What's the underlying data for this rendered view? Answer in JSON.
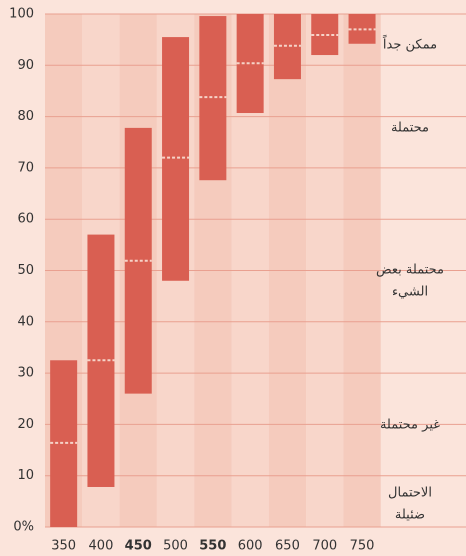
{
  "chart_data": {
    "type": "range_bar",
    "categories": [
      "350",
      "400",
      "450",
      "500",
      "550",
      "600",
      "650",
      "700",
      "750"
    ],
    "bold": [
      false,
      false,
      true,
      false,
      true,
      false,
      false,
      false,
      false
    ],
    "low": [
      0,
      7.8,
      26,
      48,
      67.6,
      80.7,
      87.3,
      92,
      94.2
    ],
    "high": [
      32.5,
      57,
      77.8,
      95.5,
      99.6,
      100,
      100,
      100,
      100
    ],
    "median": [
      16.4,
      32.5,
      51.9,
      72,
      83.8,
      90.4,
      93.8,
      95.9,
      97
    ],
    "color": "#d95f52",
    "median_color": "#f6d3c8",
    "ylim": [
      0,
      100
    ],
    "yticks": [
      {
        "value": 0,
        "label": "0%"
      },
      10,
      20,
      30,
      40,
      50,
      60,
      70,
      80,
      90,
      100
    ],
    "grid": true,
    "annotations": [
      {
        "lines": [
          "ممكن جداً"
        ]
      },
      {
        "lines": [
          "محتملة"
        ]
      },
      {
        "lines": [
          "محتملة بعض",
          "الشيء"
        ]
      },
      {
        "lines": [
          "غير محتملة"
        ]
      },
      {
        "lines": [
          "الاحتمال",
          "ضئيلة"
        ]
      }
    ]
  }
}
